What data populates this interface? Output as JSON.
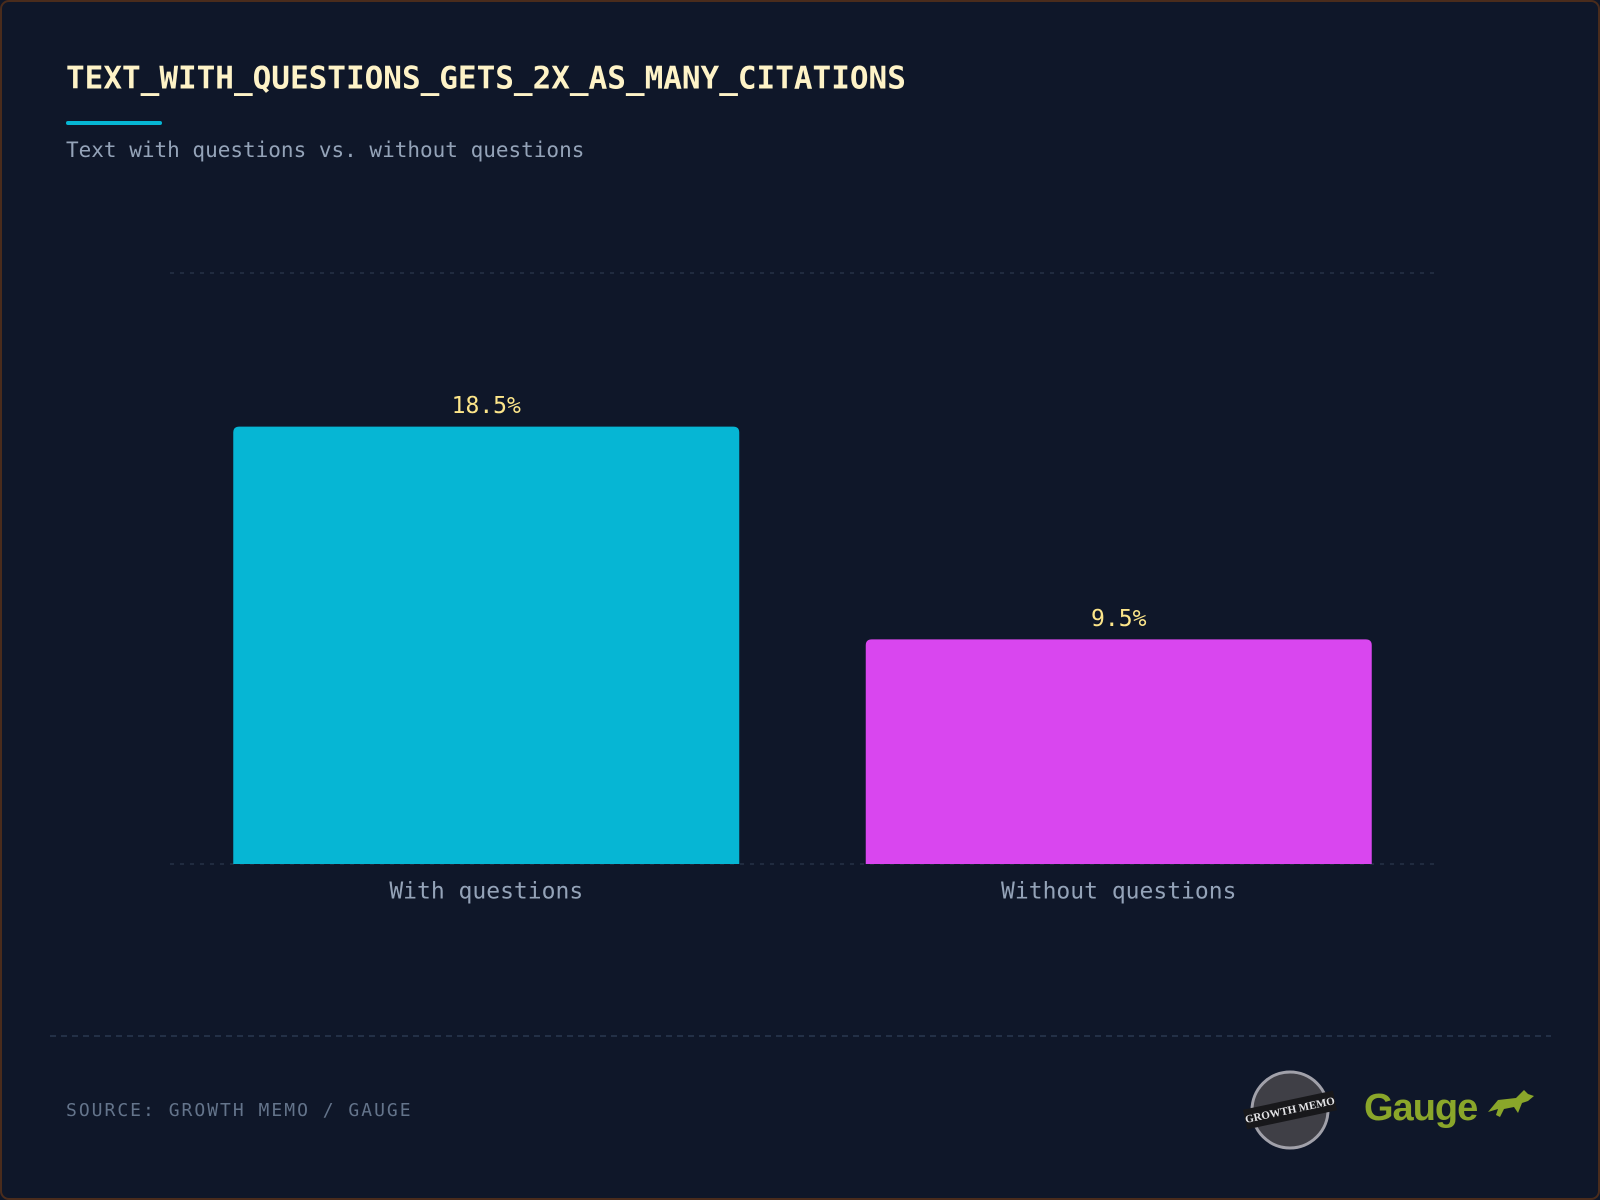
{
  "chart_data": {
    "type": "bar",
    "title": "TEXT_WITH_QUESTIONS_GETS_2X_AS_MANY_CITATIONS",
    "subtitle": "Text with questions vs. without questions",
    "categories": [
      "With questions",
      "Without questions"
    ],
    "values": [
      18.5,
      9.5
    ],
    "value_labels": [
      "18.5%",
      "9.5%"
    ],
    "colors": [
      "#06b6d4",
      "#d946ef"
    ],
    "ylim": [
      0,
      25
    ],
    "grid": true
  },
  "footer": {
    "source": "SOURCE: GROWTH MEMO / GAUGE",
    "logos": [
      "GROWTH MEMO",
      "Gauge"
    ]
  }
}
